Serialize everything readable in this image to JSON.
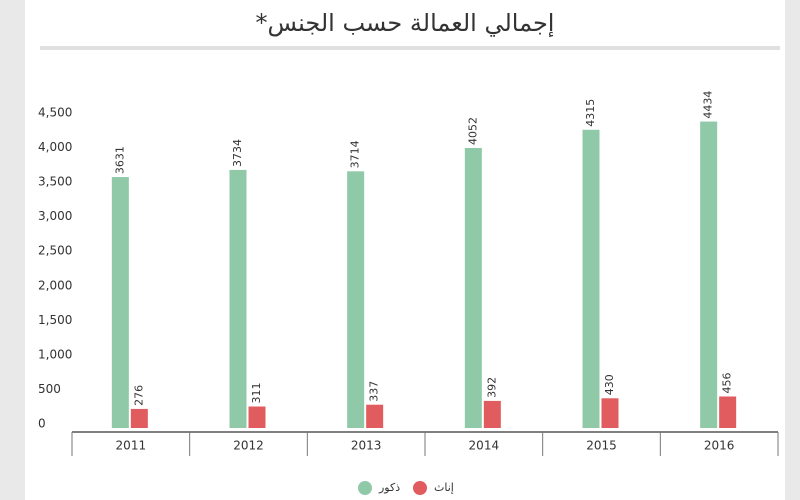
{
  "chart_data": {
    "type": "bar",
    "title": "إجمالي العمالة حسب الجنس*",
    "categories": [
      "2011",
      "2012",
      "2013",
      "2014",
      "2015",
      "2016"
    ],
    "series": [
      {
        "name": "ذكور",
        "color": "#8fc9a8",
        "values": [
          3631,
          3734,
          3714,
          4052,
          4315,
          4434
        ]
      },
      {
        "name": "إناث",
        "color": "#e05c5f",
        "values": [
          276,
          311,
          337,
          392,
          430,
          456
        ]
      }
    ],
    "ylim": [
      0,
      4500
    ],
    "yticks": [
      0,
      500,
      {
        "value": 1000,
        "label": "1,000"
      },
      {
        "value": 1500,
        "label": "1,500"
      },
      {
        "value": 2000,
        "label": "2,000"
      },
      {
        "value": 2500,
        "label": "2,500"
      },
      {
        "value": 3000,
        "label": "3,000"
      },
      {
        "value": 3500,
        "label": "3,500"
      },
      {
        "value": 4000,
        "label": "4,000"
      },
      {
        "value": 4500,
        "label": "4,500"
      }
    ],
    "grid": false
  }
}
